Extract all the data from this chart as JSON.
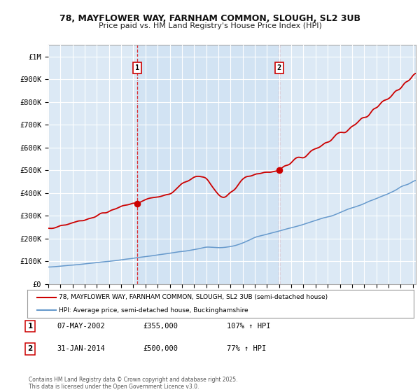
{
  "title": "78, MAYFLOWER WAY, FARNHAM COMMON, SLOUGH, SL2 3UB",
  "subtitle": "Price paid vs. HM Land Registry's House Price Index (HPI)",
  "bg_color": "#dce9f5",
  "outer_bg_color": "#ffffff",
  "red_line_color": "#cc0000",
  "blue_line_color": "#6699cc",
  "grid_color": "#ffffff",
  "legend_label_red": "78, MAYFLOWER WAY, FARNHAM COMMON, SLOUGH, SL2 3UB (semi-detached house)",
  "legend_label_blue": "HPI: Average price, semi-detached house, Buckinghamshire",
  "footer": "Contains HM Land Registry data © Crown copyright and database right 2025.\nThis data is licensed under the Open Government Licence v3.0.",
  "ylim": [
    0,
    1050000
  ],
  "yticks": [
    0,
    100000,
    200000,
    300000,
    400000,
    500000,
    600000,
    700000,
    800000,
    900000,
    1000000
  ],
  "ytick_labels": [
    "£0",
    "£100K",
    "£200K",
    "£300K",
    "£400K",
    "£500K",
    "£600K",
    "£700K",
    "£800K",
    "£900K",
    "£1M"
  ],
  "sale1_date": "07-MAY-2002",
  "sale1_price": "£355,000",
  "sale1_pct": "107% ↑ HPI",
  "sale2_date": "31-JAN-2014",
  "sale2_price": "£500,000",
  "sale2_pct": "77% ↑ HPI"
}
